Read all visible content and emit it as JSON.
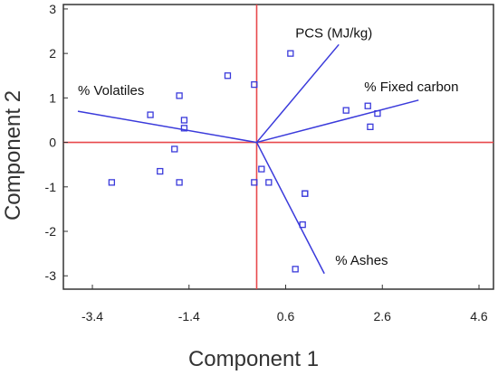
{
  "chart_data": {
    "type": "scatter",
    "subtype": "pca-biplot",
    "title": "",
    "xlabel": "Component 1",
    "ylabel": "Component 2",
    "xlim": [
      -4.0,
      4.9
    ],
    "ylim": [
      -3.3,
      3.1
    ],
    "xticks": [
      -3.4,
      -1.4,
      0.6,
      2.6,
      4.6
    ],
    "xtick_labels": [
      "-3.4",
      "-1.4",
      "0.6",
      "2.6",
      "4.6"
    ],
    "yticks": [
      3,
      2,
      1,
      0,
      -1,
      -2,
      -3
    ],
    "ytick_labels": [
      "3",
      "2",
      "1",
      "0",
      "-1",
      "-2",
      "-3"
    ],
    "grid": false,
    "colors": {
      "points": "#3a3adb",
      "vectors": "#3a3adb",
      "reference_lines": "#e8484b",
      "frame": "#333333"
    },
    "points": [
      {
        "x": -3.0,
        "y": -0.9
      },
      {
        "x": -2.0,
        "y": -0.65
      },
      {
        "x": -1.7,
        "y": -0.15
      },
      {
        "x": -1.6,
        "y": 1.05
      },
      {
        "x": -1.5,
        "y": 0.5
      },
      {
        "x": -1.5,
        "y": 0.32
      },
      {
        "x": -2.2,
        "y": 0.62
      },
      {
        "x": -1.6,
        "y": -0.9
      },
      {
        "x": -0.6,
        "y": 1.5
      },
      {
        "x": -0.05,
        "y": 1.3
      },
      {
        "x": 0.7,
        "y": 2.0
      },
      {
        "x": -0.05,
        "y": -0.9
      },
      {
        "x": 0.1,
        "y": -0.6
      },
      {
        "x": 0.25,
        "y": -0.9
      },
      {
        "x": 1.0,
        "y": -1.15
      },
      {
        "x": 1.0,
        "y": -1.15
      },
      {
        "x": 0.95,
        "y": -1.85
      },
      {
        "x": 0.8,
        "y": -2.85
      },
      {
        "x": 1.85,
        "y": 0.72
      },
      {
        "x": 2.3,
        "y": 0.82
      },
      {
        "x": 2.5,
        "y": 0.65
      },
      {
        "x": 2.35,
        "y": 0.35
      }
    ],
    "vectors": [
      {
        "label": "PCS (MJ/kg)",
        "x": 1.7,
        "y": 2.2
      },
      {
        "label": "% Fixed carbon",
        "x": 3.35,
        "y": 0.95
      },
      {
        "label": "% Volatiles",
        "x": -3.7,
        "y": 0.7
      },
      {
        "label": "% Ashes",
        "x": 1.4,
        "y": -2.95
      }
    ]
  }
}
